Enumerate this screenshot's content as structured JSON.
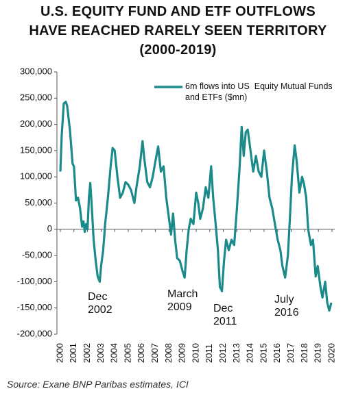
{
  "chart_data": {
    "type": "line",
    "title": [
      "U.S. EQUITY FUND AND ETF OUTFLOWS",
      "HAVE REACHED RARELY SEEN TERRITORY",
      "(2000-2019)"
    ],
    "source": "Source: Exane BNP Paribas estimates, ICI",
    "annotations": [
      "Dec 2002",
      "March 2009",
      "Dec 2011",
      "July 2016"
    ],
    "legend": "upper right",
    "xlim": [
      2000,
      2020
    ],
    "xticks": [
      2000,
      2001,
      2002,
      2003,
      2004,
      2005,
      2006,
      2007,
      2008,
      2009,
      2010,
      2011,
      2012,
      2013,
      2014,
      2015,
      2016,
      2017,
      2018,
      2019,
      2020
    ],
    "ylim": [
      -200000,
      300000
    ],
    "yticks": [
      {
        "value": -200000,
        "label": "-200,000"
      },
      {
        "value": -150000,
        "label": "-150,000"
      },
      {
        "value": -100000,
        "label": "-100,000"
      },
      {
        "value": -50000,
        "label": "-50,000"
      },
      0,
      {
        "value": 50000,
        "label": "50,000"
      },
      {
        "value": 100000,
        "label": "100,000"
      },
      {
        "value": 150000,
        "label": "150,000"
      },
      {
        "value": 200000,
        "label": "200,000"
      },
      {
        "value": 250000,
        "label": "250,000"
      },
      {
        "value": 300000,
        "label": "300,000"
      }
    ],
    "x": [
      2000.0,
      2000.1,
      2000.25,
      2000.4,
      2000.5,
      2000.7,
      2000.9,
      2001.0,
      2001.15,
      2001.3,
      2001.45,
      2001.6,
      2001.7,
      2001.8,
      2001.9,
      2002.0,
      2002.1,
      2002.2,
      2002.3,
      2002.45,
      2002.6,
      2002.75,
      2002.9,
      2003.0,
      2003.15,
      2003.3,
      2003.5,
      2003.7,
      2003.85,
      2004.0,
      2004.2,
      2004.4,
      2004.6,
      2004.8,
      2005.0,
      2005.2,
      2005.45,
      2005.6,
      2005.85,
      2006.05,
      2006.2,
      2006.4,
      2006.6,
      2006.8,
      2007.0,
      2007.2,
      2007.4,
      2007.6,
      2007.8,
      2007.95,
      2008.15,
      2008.3,
      2008.45,
      2008.6,
      2008.8,
      2009.0,
      2009.15,
      2009.3,
      2009.45,
      2009.6,
      2009.8,
      2010.0,
      2010.15,
      2010.3,
      2010.5,
      2010.7,
      2010.9,
      2011.1,
      2011.25,
      2011.4,
      2011.6,
      2011.75,
      2011.9,
      2012.05,
      2012.2,
      2012.4,
      2012.6,
      2012.8,
      2013.0,
      2013.2,
      2013.35,
      2013.5,
      2013.65,
      2013.8,
      2014.0,
      2014.2,
      2014.4,
      2014.6,
      2014.8,
      2015.0,
      2015.2,
      2015.4,
      2015.6,
      2015.8,
      2016.0,
      2016.2,
      2016.35,
      2016.55,
      2016.75,
      2016.9,
      2017.05,
      2017.25,
      2017.4,
      2017.6,
      2017.8,
      2017.95,
      2018.1,
      2018.25,
      2018.45,
      2018.6,
      2018.8,
      2018.95,
      2019.15,
      2019.3,
      2019.5,
      2019.65,
      2019.8,
      2019.95
    ],
    "series": [
      {
        "name": "6m flows into US  Equity Mutual Funds and ETFs ($mn)",
        "color": "#1a8a8a",
        "values": [
          110000,
          180000,
          240000,
          243000,
          235000,
          190000,
          125000,
          120000,
          55000,
          60000,
          40000,
          5000,
          15000,
          -5000,
          10000,
          0,
          60000,
          88000,
          50000,
          -20000,
          -60000,
          -90000,
          -100000,
          -70000,
          -40000,
          10000,
          60000,
          120000,
          155000,
          150000,
          100000,
          60000,
          70000,
          90000,
          85000,
          75000,
          50000,
          80000,
          120000,
          168000,
          130000,
          90000,
          80000,
          100000,
          130000,
          158000,
          110000,
          120000,
          60000,
          30000,
          -10000,
          30000,
          -20000,
          -55000,
          -60000,
          -80000,
          -92000,
          -40000,
          0,
          20000,
          10000,
          70000,
          50000,
          20000,
          40000,
          80000,
          60000,
          120000,
          60000,
          20000,
          -40000,
          -110000,
          -118000,
          -60000,
          -20000,
          -40000,
          -20000,
          -30000,
          40000,
          120000,
          195000,
          140000,
          185000,
          190000,
          150000,
          110000,
          140000,
          110000,
          100000,
          150000,
          110000,
          60000,
          40000,
          10000,
          -20000,
          -40000,
          -70000,
          -92000,
          -50000,
          20000,
          100000,
          160000,
          130000,
          70000,
          100000,
          85000,
          60000,
          0,
          -30000,
          -20000,
          -90000,
          -70000,
          -110000,
          -130000,
          -100000,
          -140000,
          -155000,
          -140000
        ]
      }
    ]
  }
}
